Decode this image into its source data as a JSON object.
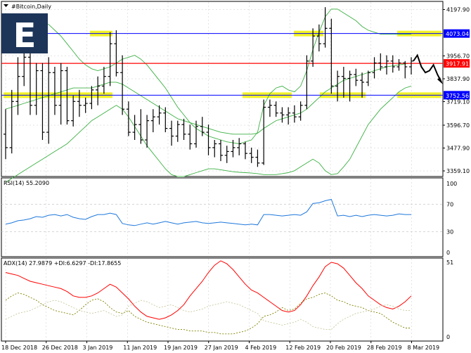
{
  "chart_data": [
    {
      "type": "candlestick",
      "title": "#Bitcoin,Daily",
      "ylim": [
        3330,
        4240
      ],
      "y_ticks": [
        "4197.90",
        "4073.04",
        "3956.70",
        "3917.91",
        "3837.90",
        "3752.56",
        "3719.10",
        "3596.70",
        "3477.90",
        "3359.10"
      ],
      "y_tick_values": [
        4197.9,
        4073.04,
        3956.7,
        3917.91,
        3837.9,
        3752.56,
        3719.1,
        3596.7,
        3477.9,
        3359.1
      ],
      "current_price": "3917.91",
      "x_ticks": [
        "18 Dec 2018",
        "26 Dec 2018",
        "3 Jan 2019",
        "11 Jan 2019",
        "19 Jan 2019",
        "27 Jan 2019",
        "4 Feb 2019",
        "12 Feb 2019",
        "20 Feb 2019",
        "28 Feb 2019",
        "8 Mar 2019"
      ],
      "levels": [
        {
          "value": 4073.04,
          "label": "4073.04",
          "color": "#0000ff",
          "style": "solid"
        },
        {
          "value": 3917.91,
          "label": "3917.91",
          "color": "#ff0000",
          "style": "solid"
        },
        {
          "value": 3752.56,
          "label": "3752.56",
          "color": "#0000ff",
          "style": "solid"
        }
      ],
      "colors": {
        "grid": "#c8c8c8",
        "bollinger": "#3cb043",
        "highlight": "#f0f000",
        "forecast": "#000000"
      },
      "ohlc": [
        [
          3550,
          3680,
          3420,
          3480
        ],
        [
          3480,
          3780,
          3450,
          3720
        ],
        [
          3720,
          3950,
          3650,
          3850
        ],
        [
          3850,
          4050,
          3800,
          3950
        ],
        [
          3950,
          4080,
          3650,
          3700
        ],
        [
          3700,
          3920,
          3650,
          3880
        ],
        [
          3880,
          3920,
          3520,
          3560
        ],
        [
          3560,
          3950,
          3500,
          3870
        ],
        [
          3870,
          3900,
          3650,
          3700
        ],
        [
          3700,
          3920,
          3600,
          3880
        ],
        [
          3880,
          3900,
          3600,
          3620
        ],
        [
          3620,
          3750,
          3590,
          3720
        ],
        [
          3720,
          3780,
          3640,
          3700
        ],
        [
          3700,
          3740,
          3660,
          3710
        ],
        [
          3710,
          3800,
          3680,
          3780
        ],
        [
          3780,
          3850,
          3700,
          3800
        ],
        [
          3800,
          3900,
          3760,
          3850
        ],
        [
          3850,
          4080,
          3800,
          4020
        ],
        [
          4020,
          4090,
          3850,
          3870
        ],
        [
          3870,
          3960,
          3650,
          3680
        ],
        [
          3680,
          3720,
          3540,
          3560
        ],
        [
          3560,
          3650,
          3520,
          3600
        ],
        [
          3600,
          3680,
          3500,
          3520
        ],
        [
          3520,
          3650,
          3480,
          3620
        ],
        [
          3620,
          3680,
          3560,
          3640
        ],
        [
          3640,
          3700,
          3600,
          3660
        ],
        [
          3660,
          3690,
          3560,
          3580
        ],
        [
          3580,
          3620,
          3490,
          3540
        ],
        [
          3540,
          3620,
          3510,
          3600
        ],
        [
          3600,
          3630,
          3520,
          3550
        ],
        [
          3550,
          3600,
          3470,
          3500
        ],
        [
          3500,
          3620,
          3480,
          3590
        ],
        [
          3590,
          3640,
          3540,
          3560
        ],
        [
          3560,
          3600,
          3440,
          3480
        ],
        [
          3480,
          3520,
          3430,
          3500
        ],
        [
          3500,
          3520,
          3410,
          3440
        ],
        [
          3440,
          3490,
          3400,
          3460
        ],
        [
          3460,
          3520,
          3430,
          3480
        ],
        [
          3480,
          3530,
          3440,
          3500
        ],
        [
          3500,
          3510,
          3420,
          3450
        ],
        [
          3450,
          3480,
          3400,
          3430
        ],
        [
          3430,
          3470,
          3380,
          3400
        ],
        [
          3400,
          3730,
          3390,
          3690
        ],
        [
          3690,
          3730,
          3640,
          3700
        ],
        [
          3700,
          3720,
          3640,
          3660
        ],
        [
          3660,
          3690,
          3610,
          3650
        ],
        [
          3650,
          3690,
          3600,
          3660
        ],
        [
          3660,
          3700,
          3610,
          3640
        ],
        [
          3640,
          3720,
          3620,
          3700
        ],
        [
          3700,
          3960,
          3680,
          3930
        ],
        [
          3930,
          4100,
          3900,
          4060
        ],
        [
          4060,
          4120,
          3980,
          4020
        ],
        [
          4020,
          4210,
          4000,
          4100
        ],
        [
          4100,
          4150,
          3760,
          3800
        ],
        [
          3800,
          3880,
          3720,
          3850
        ],
        [
          3850,
          3900,
          3740,
          3840
        ],
        [
          3840,
          3880,
          3720,
          3860
        ],
        [
          3860,
          3890,
          3800,
          3830
        ],
        [
          3830,
          3870,
          3740,
          3820
        ],
        [
          3820,
          3880,
          3800,
          3870
        ],
        [
          3870,
          3950,
          3840,
          3920
        ],
        [
          3920,
          3970,
          3880,
          3900
        ],
        [
          3900,
          3960,
          3860,
          3930
        ],
        [
          3930,
          3960,
          3870,
          3900
        ],
        [
          3900,
          3940,
          3880,
          3920
        ],
        [
          3920,
          3930,
          3840,
          3900
        ],
        [
          3900,
          3950,
          3860,
          3930
        ]
      ],
      "forecast": [
        3930,
        3960,
        3900,
        3870,
        3880,
        3910,
        3860,
        3820
      ],
      "bollinger_upper": [
        4100,
        4120,
        4140,
        4150,
        4160,
        4150,
        4140,
        4120,
        4090,
        4060,
        4020,
        3980,
        3940,
        3910,
        3890,
        3880,
        3890,
        3900,
        3920,
        3940,
        3950,
        3960,
        3940,
        3910,
        3870,
        3830,
        3790,
        3740,
        3690,
        3650,
        3610,
        3580,
        3560,
        3540,
        3530,
        3520,
        3510,
        3505,
        3500,
        3510,
        3520,
        3560,
        3700,
        3760,
        3790,
        3800,
        3780,
        3770,
        3800,
        3880,
        3990,
        4080,
        4160,
        4200,
        4200,
        4180,
        4160,
        4140,
        4110,
        4090,
        4080,
        4070,
        4070,
        4070,
        4070,
        4070,
        4070
      ],
      "bollinger_middle": [
        3680,
        3690,
        3700,
        3710,
        3720,
        3730,
        3740,
        3750,
        3760,
        3770,
        3780,
        3790,
        3790,
        3790,
        3790,
        3800,
        3810,
        3820,
        3820,
        3810,
        3790,
        3770,
        3750,
        3730,
        3710,
        3690,
        3670,
        3650,
        3630,
        3620,
        3610,
        3600,
        3590,
        3580,
        3570,
        3560,
        3555,
        3550,
        3550,
        3550,
        3550,
        3555,
        3580,
        3600,
        3620,
        3630,
        3640,
        3650,
        3660,
        3680,
        3710,
        3740,
        3770,
        3790,
        3810,
        3830,
        3840,
        3850,
        3860,
        3870,
        3880,
        3890,
        3900,
        3905,
        3910,
        3915,
        3920
      ],
      "bollinger_lower": [
        3300,
        3320,
        3340,
        3360,
        3380,
        3400,
        3420,
        3440,
        3460,
        3480,
        3500,
        3530,
        3560,
        3590,
        3620,
        3640,
        3660,
        3680,
        3700,
        3680,
        3640,
        3590,
        3540,
        3490,
        3450,
        3410,
        3370,
        3340,
        3330,
        3330,
        3340,
        3350,
        3360,
        3370,
        3370,
        3365,
        3360,
        3355,
        3352,
        3350,
        3348,
        3345,
        3340,
        3340,
        3340,
        3345,
        3350,
        3360,
        3380,
        3400,
        3420,
        3400,
        3360,
        3340,
        3345,
        3380,
        3420,
        3480,
        3540,
        3600,
        3640,
        3680,
        3710,
        3740,
        3770,
        3790,
        3800
      ]
    },
    {
      "type": "line",
      "title": "RSI(14) 55.2090",
      "ylim": [
        0,
        100
      ],
      "y_ticks": [
        "100",
        "70",
        "30",
        "0"
      ],
      "y_tick_values": [
        100,
        70,
        30,
        0
      ],
      "levels": [
        70,
        30
      ],
      "series": [
        {
          "color": "#1e78dc",
          "values": [
            41,
            43,
            46,
            47,
            49,
            52,
            51,
            54,
            55,
            53,
            55,
            51,
            49,
            48,
            52,
            55,
            55,
            57,
            55,
            42,
            40,
            39,
            41,
            43,
            41,
            43,
            45,
            43,
            41,
            43,
            44,
            45,
            43,
            42,
            43,
            44,
            43,
            42,
            41,
            40,
            41,
            40,
            55,
            55,
            54,
            53,
            54,
            55,
            54,
            59,
            71,
            72,
            75,
            77,
            53,
            54,
            52,
            54,
            52,
            54,
            55,
            54,
            53,
            54,
            56,
            55,
            55
          ]
        }
      ]
    },
    {
      "type": "line",
      "title": "ADX(14) 27.9879 +DI:6.6297 -DI:17.8655",
      "ylim": [
        0,
        51
      ],
      "y_ticks": [
        "51",
        "0"
      ],
      "y_tick_values": [
        51,
        0
      ],
      "series": [
        {
          "color": "#ff0000",
          "values": [
            44,
            43,
            42,
            40,
            38,
            37,
            36,
            35,
            34,
            33,
            31,
            28,
            27,
            27,
            28,
            30,
            33,
            36,
            34,
            30,
            26,
            21,
            17,
            14,
            13,
            12,
            13,
            15,
            18,
            22,
            28,
            33,
            38,
            44,
            49,
            52,
            50,
            46,
            41,
            36,
            32,
            30,
            27,
            24,
            21,
            18,
            17,
            18,
            22,
            28,
            35,
            41,
            48,
            51,
            50,
            47,
            42,
            37,
            33,
            28,
            25,
            22,
            20,
            19,
            21,
            24,
            28
          ]
        },
        {
          "color": "#808000",
          "values": [
            25,
            28,
            30,
            29,
            27,
            25,
            22,
            20,
            18,
            17,
            16,
            15,
            18,
            22,
            25,
            26,
            24,
            20,
            17,
            16,
            18,
            14,
            12,
            10,
            9,
            8,
            7,
            6,
            5,
            5,
            4,
            4,
            4,
            3,
            3,
            2,
            2,
            2,
            3,
            4,
            6,
            9,
            14,
            15,
            17,
            20,
            18,
            19,
            23,
            26,
            27,
            29,
            30,
            28,
            25,
            24,
            22,
            21,
            20,
            18,
            17,
            16,
            13,
            10,
            8,
            6,
            6
          ]
        },
        {
          "color": "#c8c8a0",
          "values": [
            12,
            14,
            16,
            17,
            18,
            20,
            22,
            24,
            25,
            24,
            22,
            20,
            18,
            17,
            16,
            17,
            18,
            16,
            14,
            15,
            21,
            23,
            25,
            24,
            22,
            20,
            21,
            22,
            20,
            18,
            17,
            18,
            19,
            21,
            22,
            23,
            24,
            23,
            22,
            20,
            18,
            16,
            11,
            10,
            9,
            8,
            9,
            10,
            12,
            10,
            7,
            6,
            5,
            5,
            9,
            12,
            14,
            16,
            17,
            18,
            19,
            21,
            22,
            21,
            19,
            18,
            18
          ]
        }
      ]
    }
  ]
}
